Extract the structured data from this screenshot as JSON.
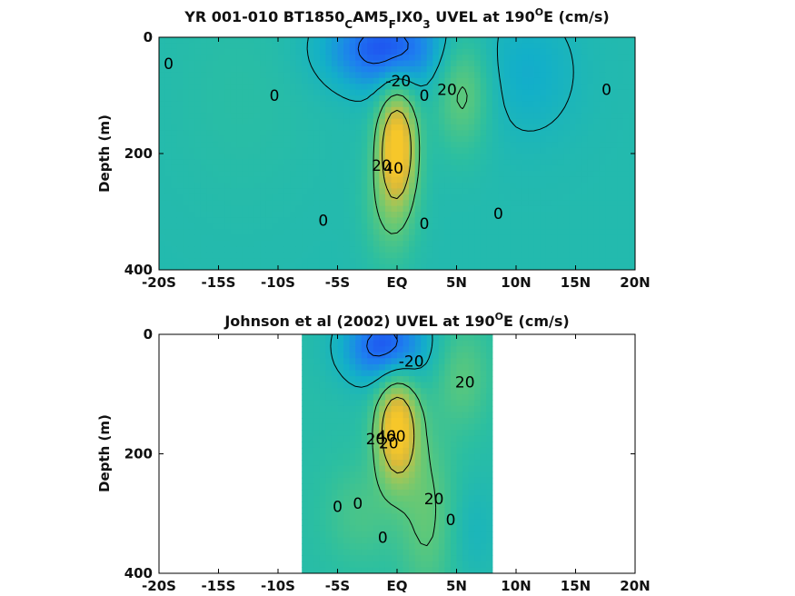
{
  "chart_data": [
    {
      "type": "heatmap",
      "title": {
        "prefix": "YR 001-010 BT1850",
        "sub1": "C",
        "mid1": "AM5",
        "sub2": "F",
        "mid2": "IX0",
        "sub3": "3",
        "mid3": " UVEL at 190",
        "sup": "O",
        "suffix": "E (cm/s)"
      },
      "ylabel": "Depth (m)",
      "x_ticks": [
        "-20S",
        "-15S",
        "-10S",
        "-5S",
        "EQ",
        "5N",
        "10N",
        "15N",
        "20N"
      ],
      "x_tick_values": [
        -20,
        -15,
        -10,
        -5,
        0,
        5,
        10,
        15,
        20
      ],
      "y_ticks": [
        "0",
        "200",
        "400"
      ],
      "y_tick_values": [
        0,
        200,
        400
      ],
      "xlim": [
        -20,
        20
      ],
      "ylim": [
        400,
        0
      ],
      "data_xrange": [
        -20,
        20
      ],
      "colorscale": [
        "#1f3ff0",
        "#1e7ef0",
        "#13b0c8",
        "#2cbfa0",
        "#5dc87a",
        "#99c75c",
        "#d8b93a",
        "#f6c72a"
      ],
      "color_range": [
        -30,
        60
      ],
      "background": 4,
      "features": [
        {
          "x": 0,
          "y": 185,
          "sx": 1.1,
          "sy": 65,
          "amp": 58
        },
        {
          "x": -0.5,
          "y": 290,
          "sx": 1.5,
          "sy": 70,
          "amp": 16
        },
        {
          "x": -1,
          "y": 20,
          "sx": 3.5,
          "sy": 50,
          "amp": -30
        },
        {
          "x": 5.5,
          "y": 90,
          "sx": 1.6,
          "sy": 70,
          "amp": 20
        },
        {
          "x": 11,
          "y": 60,
          "sx": 3.0,
          "sy": 80,
          "amp": -9
        },
        {
          "x": -13,
          "y": 100,
          "sx": 4.5,
          "sy": 140,
          "amp": 3
        }
      ],
      "contour_labels": [
        {
          "text": "0",
          "x": -19.2,
          "y": 45
        },
        {
          "text": "0",
          "x": -10.3,
          "y": 100
        },
        {
          "text": "-20",
          "x": 0.1,
          "y": 75
        },
        {
          "text": "0",
          "x": 2.3,
          "y": 100
        },
        {
          "text": "20",
          "x": 4.2,
          "y": 90
        },
        {
          "text": "0",
          "x": 17.6,
          "y": 90
        },
        {
          "text": "20",
          "x": -1.3,
          "y": 220
        },
        {
          "text": "40",
          "x": -0.3,
          "y": 225
        },
        {
          "text": "0",
          "x": -6.2,
          "y": 315
        },
        {
          "text": "0",
          "x": 2.3,
          "y": 320
        },
        {
          "text": "0",
          "x": 8.5,
          "y": 303
        }
      ]
    },
    {
      "type": "heatmap",
      "title": {
        "prefix": "Johnson et al (2002) UVEL at 190",
        "sup": "O",
        "suffix": "E (cm/s)"
      },
      "ylabel": "Depth (m)",
      "x_ticks": [
        "-20S",
        "-15S",
        "-10S",
        "-5S",
        "EQ",
        "5N",
        "10N",
        "15N",
        "20N"
      ],
      "x_tick_values": [
        -20,
        -15,
        -10,
        -5,
        0,
        5,
        10,
        15,
        20
      ],
      "y_ticks": [
        "0",
        "200",
        "400"
      ],
      "y_tick_values": [
        0,
        200,
        400
      ],
      "xlim": [
        -20,
        20
      ],
      "ylim": [
        400,
        0
      ],
      "data_xrange": [
        -8,
        8
      ],
      "colorscale": [
        "#1f3ff0",
        "#1e7ef0",
        "#13b0c8",
        "#2cbfa0",
        "#5dc87a",
        "#99c75c",
        "#d8b93a",
        "#f6c72a"
      ],
      "color_range": [
        -30,
        60
      ],
      "background": 6,
      "features": [
        {
          "x": 0,
          "y": 160,
          "sx": 1.2,
          "sy": 60,
          "amp": 58
        },
        {
          "x": 2.5,
          "y": 300,
          "sx": 1.6,
          "sy": 100,
          "amp": 16
        },
        {
          "x": -3,
          "y": 300,
          "sx": 2.2,
          "sy": 60,
          "amp": 10
        },
        {
          "x": -1,
          "y": 20,
          "sx": 2.5,
          "sy": 45,
          "amp": -32
        },
        {
          "x": 5.5,
          "y": 70,
          "sx": 1.6,
          "sy": 60,
          "amp": 14
        },
        {
          "x": 6.5,
          "y": 330,
          "sx": 1.5,
          "sy": 60,
          "amp": -6
        }
      ],
      "contour_labels": [
        {
          "text": "-20",
          "x": 1.2,
          "y": 45
        },
        {
          "text": "20",
          "x": 5.7,
          "y": 80
        },
        {
          "text": "20",
          "x": -1.8,
          "y": 175
        },
        {
          "text": "40",
          "x": -0.9,
          "y": 170
        },
        {
          "text": "60",
          "x": -0.1,
          "y": 170
        },
        {
          "text": "20",
          "x": -0.7,
          "y": 182
        },
        {
          "text": "20",
          "x": 3.1,
          "y": 275
        },
        {
          "text": "0",
          "x": -5.0,
          "y": 288
        },
        {
          "text": "0",
          "x": -3.3,
          "y": 283
        },
        {
          "text": "0",
          "x": 4.5,
          "y": 310
        },
        {
          "text": "0",
          "x": -1.2,
          "y": 340
        }
      ]
    }
  ]
}
